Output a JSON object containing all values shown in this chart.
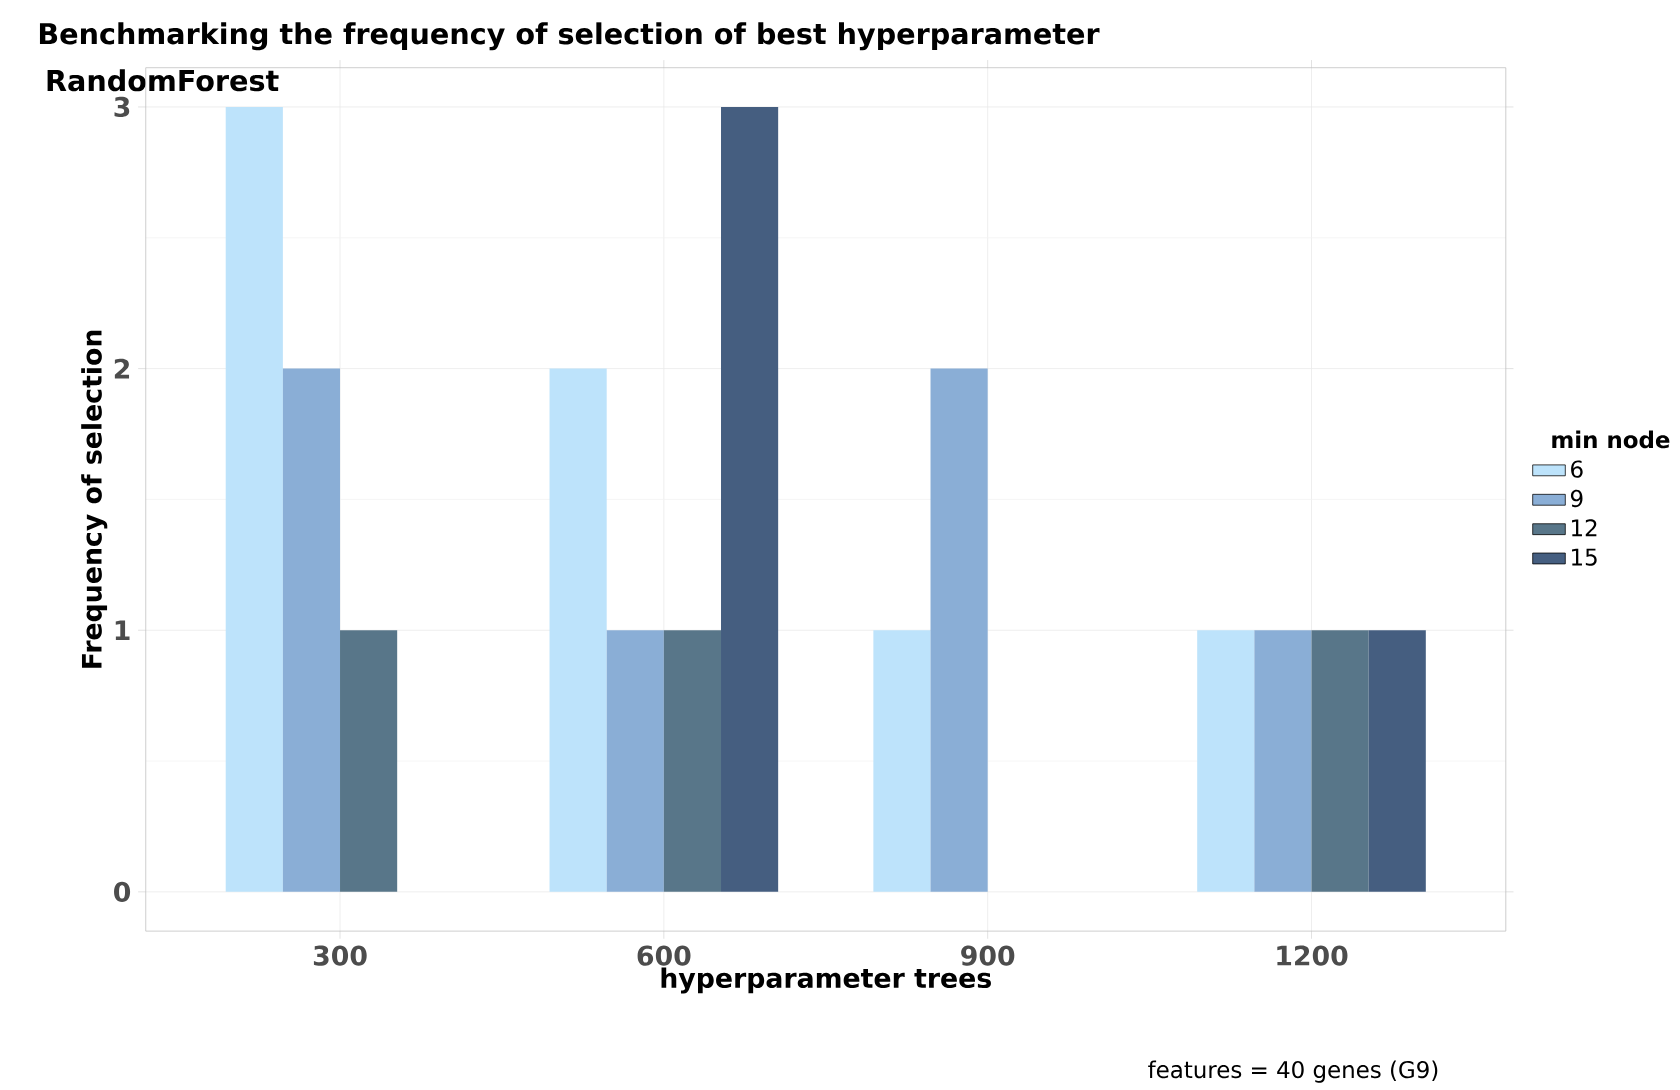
{
  "chart_data": {
    "type": "bar",
    "title": "Benchmarking the frequency of selection of best hyperparameter",
    "subtitle": "RandomForest",
    "xlabel": "hyperparameter trees",
    "ylabel": "Frequency of selection",
    "legend_title": "min node",
    "categories": [
      "300",
      "600",
      "900",
      "1200"
    ],
    "series": [
      {
        "name": "6",
        "color": "#bde3fb",
        "values": [
          3,
          2,
          1,
          1
        ]
      },
      {
        "name": "9",
        "color": "#8aaed6",
        "values": [
          2,
          1,
          2,
          1
        ]
      },
      {
        "name": "12",
        "color": "#587689",
        "values": [
          1,
          1,
          null,
          1
        ]
      },
      {
        "name": "15",
        "color": "#455e80",
        "values": [
          null,
          3,
          null,
          1
        ]
      }
    ],
    "ylim": [
      -0.15,
      3.15
    ],
    "yticks": [
      0,
      1,
      2,
      3
    ],
    "grid": true,
    "legend": "right",
    "annotations": [
      "features = 40 genes (G9)"
    ]
  }
}
